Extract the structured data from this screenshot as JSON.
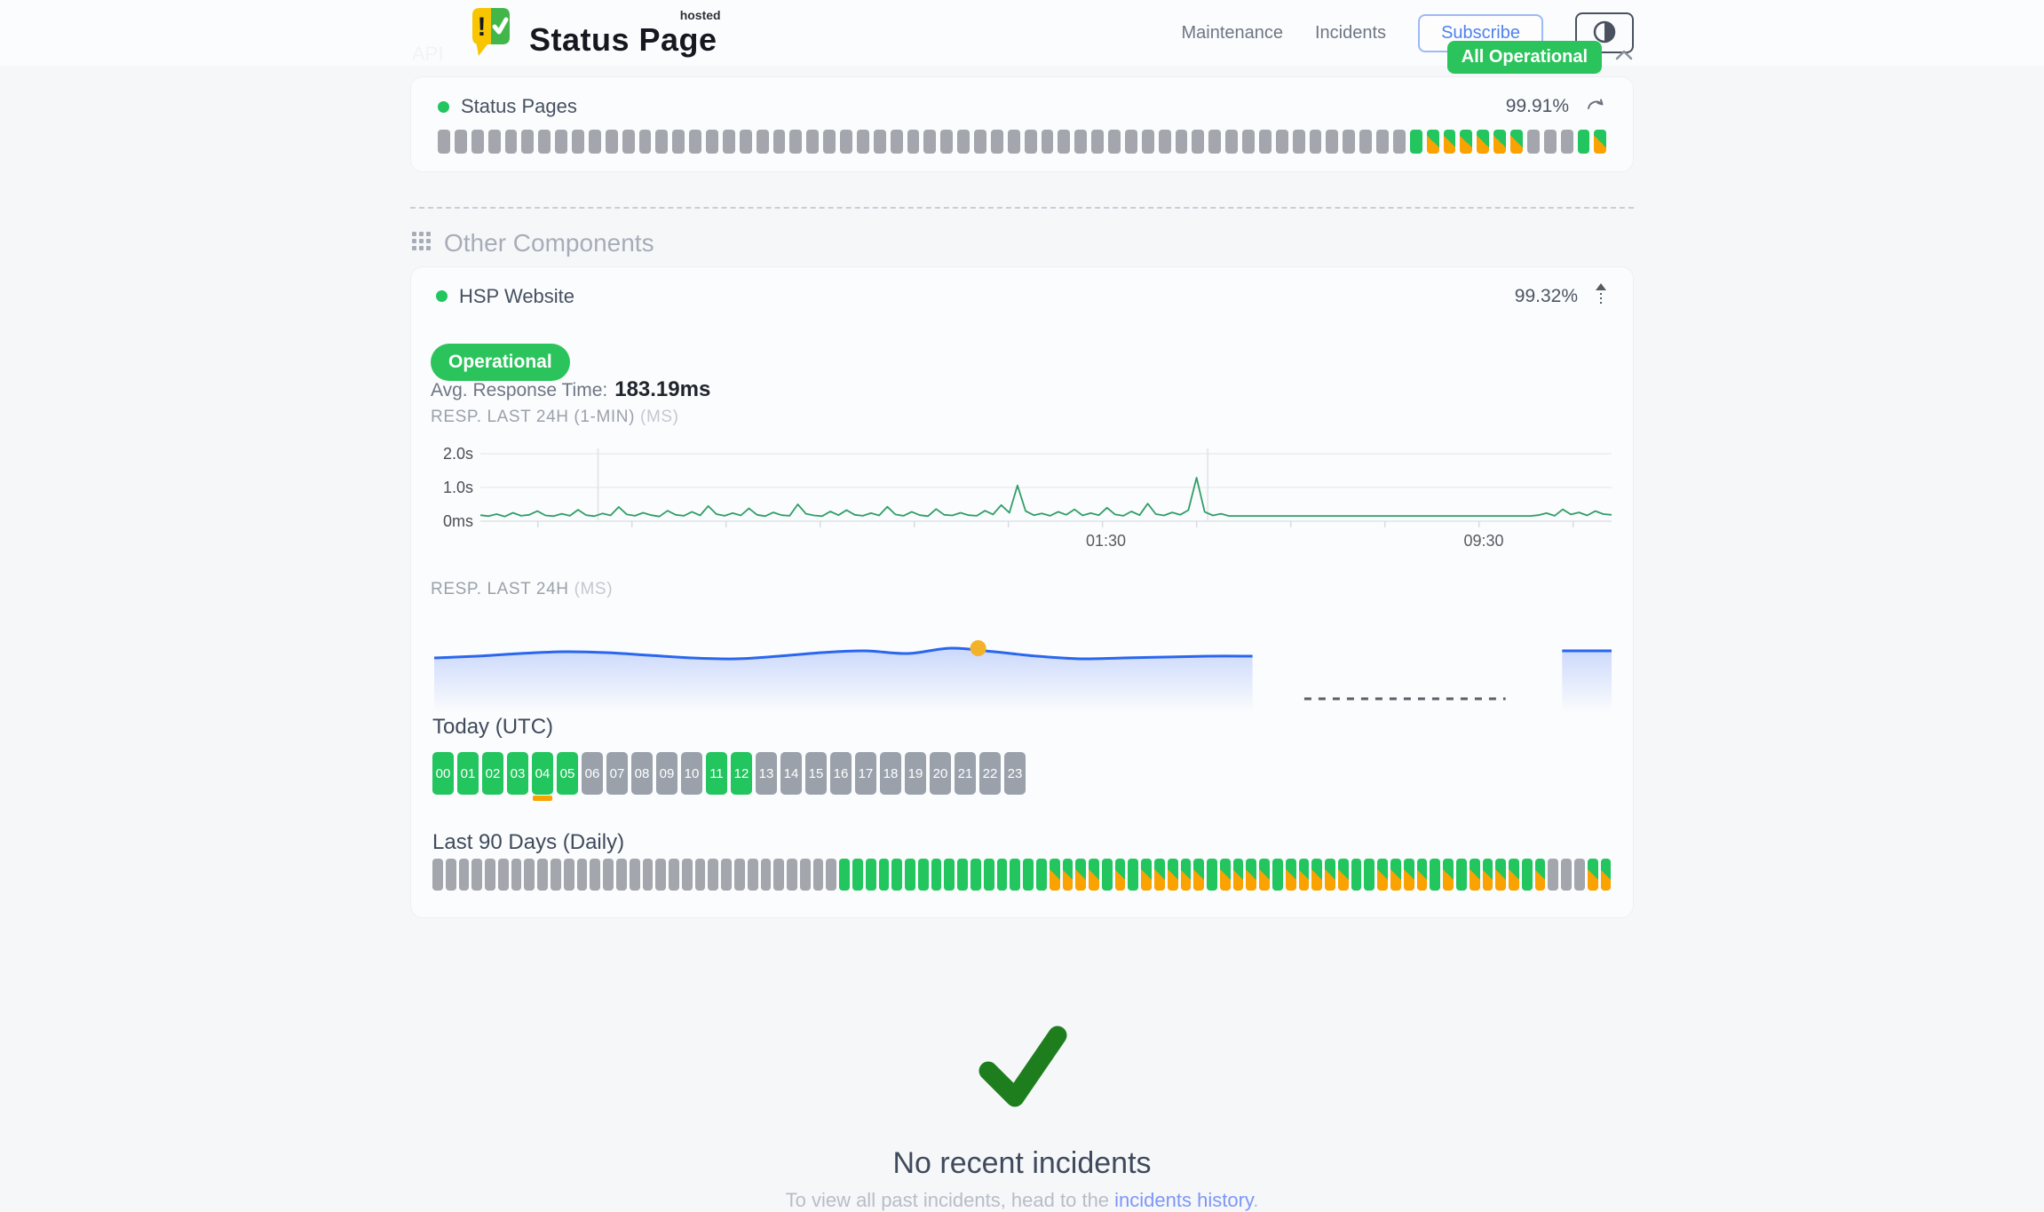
{
  "header": {
    "brand": {
      "title": "Status Page",
      "superscript": "hosted"
    },
    "nav": [
      {
        "label": "Maintenance"
      },
      {
        "label": "Incidents"
      }
    ],
    "subscribe_label": "Subscribe",
    "overall_status": {
      "label": "All Operational",
      "color": "#2bc45c"
    }
  },
  "api_section": {
    "title": "API",
    "component": {
      "name": "Status Pages",
      "uptime": "99.91%",
      "bars_legend": {
        "g": "unknown",
        "u": "operational",
        "m": "partial-degraded"
      },
      "bars": "ggggggggggggggggggggggggggggggggggggggggggggggggggggggggggummmmmmgggum"
    }
  },
  "other_section": {
    "title": "Other Components",
    "component": {
      "name": "HSP Website",
      "uptime": "99.32%",
      "status_label": "Operational",
      "avg_response": {
        "label": "Avg. Response Time:",
        "value": "183.19ms"
      },
      "today": {
        "label": "Today (UTC)",
        "hours": [
          {
            "label": "00",
            "state": "up"
          },
          {
            "label": "01",
            "state": "up"
          },
          {
            "label": "02",
            "state": "up"
          },
          {
            "label": "03",
            "state": "up"
          },
          {
            "label": "04",
            "state": "up",
            "strip": true
          },
          {
            "label": "05",
            "state": "up"
          },
          {
            "label": "06",
            "state": "none"
          },
          {
            "label": "07",
            "state": "none"
          },
          {
            "label": "08",
            "state": "none"
          },
          {
            "label": "09",
            "state": "none"
          },
          {
            "label": "10",
            "state": "none"
          },
          {
            "label": "11",
            "state": "up"
          },
          {
            "label": "12",
            "state": "up"
          },
          {
            "label": "13",
            "state": "none"
          },
          {
            "label": "14",
            "state": "none"
          },
          {
            "label": "15",
            "state": "none"
          },
          {
            "label": "16",
            "state": "none"
          },
          {
            "label": "17",
            "state": "none"
          },
          {
            "label": "18",
            "state": "none"
          },
          {
            "label": "19",
            "state": "none"
          },
          {
            "label": "20",
            "state": "none"
          },
          {
            "label": "21",
            "state": "none"
          },
          {
            "label": "22",
            "state": "none"
          },
          {
            "label": "23",
            "state": "none"
          }
        ]
      },
      "last90": {
        "label": "Last 90 Days (Daily)",
        "days": "ggggggggggggggggggggggggggggggguuuuuuuuuuuuuuuummmmumummmmmummmmummmmmuummmmumummmmumgggmm"
      }
    }
  },
  "chart_data": [
    {
      "type": "line",
      "title": "RESP. LAST 24H (1-MIN)",
      "unit": "(MS)",
      "color": "#2f9e68",
      "ylim_ms": [
        0,
        2000
      ],
      "yticks": [
        {
          "label": "2.0s",
          "ms": 2000
        },
        {
          "label": "1.0s",
          "ms": 1000
        },
        {
          "label": "0ms",
          "ms": 0
        }
      ],
      "xticks": [
        {
          "label": "01:30",
          "f": 0.553
        },
        {
          "label": "09:30",
          "f": 0.887
        }
      ],
      "vlines": [
        0.104,
        0.643
      ],
      "tick_start": 0.0508,
      "tick_step": 0.0832,
      "values_ms": [
        180,
        150,
        210,
        140,
        250,
        160,
        190,
        300,
        170,
        150,
        220,
        160,
        340,
        180,
        150,
        230,
        170,
        420,
        200,
        160,
        250,
        180,
        140,
        310,
        190,
        160,
        280,
        170,
        450,
        210,
        160,
        240,
        170,
        380,
        190,
        150,
        260,
        180,
        160,
        500,
        220,
        170,
        150,
        290,
        180,
        330,
        190,
        160,
        240,
        170,
        430,
        200,
        160,
        280,
        180,
        150,
        360,
        190,
        170,
        250,
        180,
        160,
        310,
        200,
        480,
        250,
        1060,
        300,
        180,
        230,
        160,
        280,
        190,
        350,
        170,
        240,
        180,
        400,
        200,
        160,
        290,
        180,
        520,
        210,
        170,
        260,
        190,
        330,
        1290,
        280,
        170,
        220,
        155,
        155,
        155,
        155,
        155,
        155,
        155,
        155,
        155,
        155,
        155,
        155,
        155,
        155,
        155,
        155,
        155,
        155,
        155,
        155,
        155,
        155,
        155,
        155,
        155,
        155,
        155,
        155,
        155,
        155,
        155,
        155,
        155,
        155,
        155,
        155,
        155,
        155,
        180,
        240,
        160,
        350,
        200,
        260,
        170,
        300,
        210,
        190
      ]
    },
    {
      "type": "area",
      "title": "RESP. LAST 24H",
      "unit": "(MS)",
      "color": "#2a66ee",
      "dot_color": "#f2b32a",
      "main": {
        "x0": 0.0,
        "x1": 0.695,
        "y": [
          52,
          50,
          47,
          45,
          46,
          49,
          52,
          53,
          50,
          46,
          44,
          47,
          41,
          45,
          50,
          53,
          52,
          51,
          50,
          50
        ]
      },
      "dot": {
        "f": 0.462,
        "y": 41
      },
      "gap_dash": {
        "x0": 0.739,
        "x1": 0.91,
        "y": 98
      },
      "tail": {
        "x0": 0.958,
        "x1": 1.0,
        "y": 44
      }
    }
  ],
  "incidents": {
    "title": "No recent incidents",
    "prefix": "To view all past incidents, head to the ",
    "link": "incidents history",
    "suffix": "."
  }
}
